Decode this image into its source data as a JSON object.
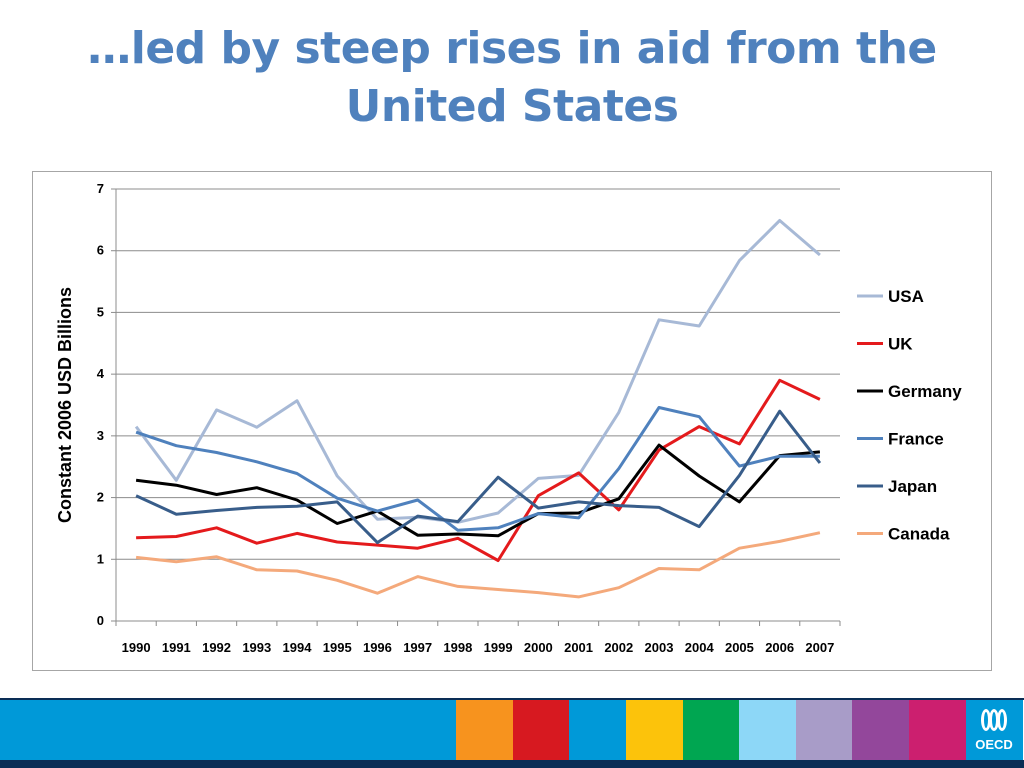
{
  "slide": {
    "title_line1": "…led by steep rises in aid from the",
    "title_line2": "United States",
    "logo_text": "OECD"
  },
  "footer_colors": [
    "#0099d8",
    "#0099d8",
    "#0099d8",
    "#0099d8",
    "#0099d8",
    "#0099d8",
    "#0099d8",
    "#0099d8",
    "#f7931e",
    "#d71920",
    "#0099d8",
    "#fcc30b",
    "#00a651",
    "#8dd7f7",
    "#a89cc8",
    "#93479b",
    "#cc1f6f",
    "#0099d8"
  ],
  "chart_data": {
    "type": "line",
    "title": "",
    "xlabel": "",
    "ylabel": "Constant 2006 USD Billions",
    "ylim": [
      0,
      7
    ],
    "yticks": [
      "0",
      "1",
      "2",
      "3",
      "4",
      "5",
      "6",
      "7"
    ],
    "categories": [
      "1990",
      "1991",
      "1992",
      "1993",
      "1994",
      "1995",
      "1996",
      "1997",
      "1998",
      "1999",
      "2000",
      "2001",
      "2002",
      "2003",
      "2004",
      "2005",
      "2006",
      "2007"
    ],
    "grid": true,
    "legend_position": "right",
    "series": [
      {
        "name": "USA",
        "color": "#a7b9d6",
        "values": [
          3.15,
          2.28,
          3.42,
          3.14,
          3.57,
          2.35,
          1.65,
          1.68,
          1.6,
          1.75,
          2.31,
          2.36,
          3.38,
          4.88,
          4.78,
          5.84,
          6.49,
          5.93
        ]
      },
      {
        "name": "UK",
        "color": "#e41a1c",
        "values": [
          1.35,
          1.37,
          1.51,
          1.26,
          1.42,
          1.28,
          1.23,
          1.18,
          1.34,
          0.98,
          2.03,
          2.4,
          1.8,
          2.77,
          3.15,
          2.87,
          3.9,
          3.59
        ]
      },
      {
        "name": "Germany",
        "color": "#000000",
        "values": [
          2.28,
          2.2,
          2.05,
          2.16,
          1.96,
          1.58,
          1.78,
          1.39,
          1.41,
          1.38,
          1.74,
          1.75,
          1.98,
          2.85,
          2.35,
          1.93,
          2.68,
          2.74
        ]
      },
      {
        "name": "France",
        "color": "#4f81bd",
        "values": [
          3.06,
          2.84,
          2.73,
          2.58,
          2.39,
          1.99,
          1.78,
          1.96,
          1.47,
          1.51,
          1.74,
          1.67,
          2.47,
          3.46,
          3.31,
          2.51,
          2.67,
          2.67
        ]
      },
      {
        "name": "Japan",
        "color": "#385d8a",
        "values": [
          2.03,
          1.73,
          1.79,
          1.84,
          1.86,
          1.93,
          1.27,
          1.7,
          1.61,
          2.33,
          1.83,
          1.93,
          1.87,
          1.84,
          1.53,
          2.36,
          3.4,
          2.56
        ]
      },
      {
        "name": "Canada",
        "color": "#f4a97b",
        "values": [
          1.03,
          0.96,
          1.04,
          0.83,
          0.81,
          0.66,
          0.45,
          0.72,
          0.56,
          0.51,
          0.46,
          0.39,
          0.54,
          0.85,
          0.83,
          1.18,
          1.29,
          1.43
        ]
      }
    ]
  }
}
